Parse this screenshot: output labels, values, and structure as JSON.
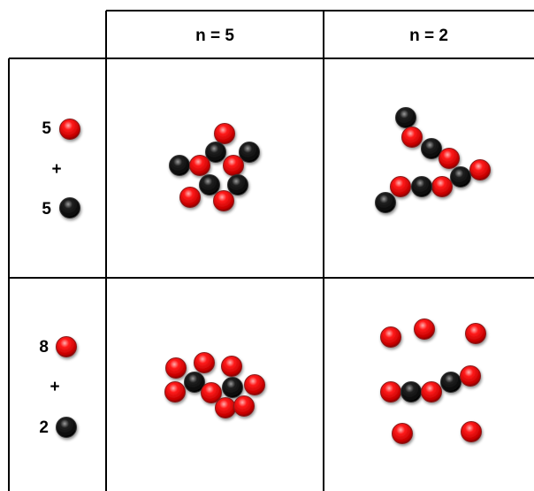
{
  "table": {
    "columns": [
      "n = 5",
      "n = 2"
    ],
    "rows": [
      {
        "red_count": "5",
        "operator": "+",
        "black_count": "5"
      },
      {
        "red_count": "8",
        "operator": "+",
        "black_count": "2"
      }
    ]
  }
}
